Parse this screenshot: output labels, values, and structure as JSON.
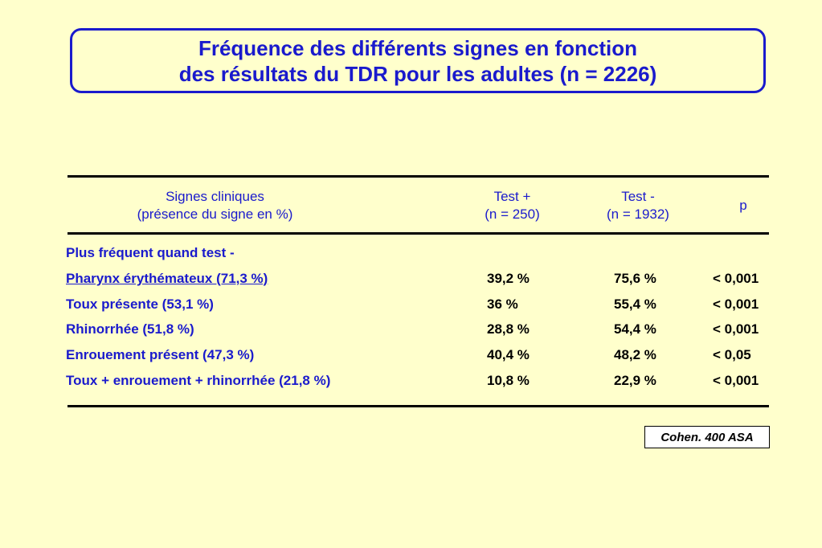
{
  "title": {
    "line1": "Fréquence des différents signes en fonction",
    "line2": "des résultats du TDR pour les adultes (n = 2226)"
  },
  "table": {
    "headers": {
      "signes_line1": "Signes cliniques",
      "signes_line2": "(présence du signe en %)",
      "test_pos_line1": "Test +",
      "test_pos_line2": "(n = 250)",
      "test_neg_line1": "Test -",
      "test_neg_line2": "(n = 1932)",
      "p": "p"
    },
    "section_label": "Plus fréquent quand test -",
    "rows": [
      {
        "label": "Pharynx érythémateux (71,3 %)",
        "test_pos": "39,2 %",
        "test_neg": "75,6 %",
        "p": "< 0,001"
      },
      {
        "label": "Toux présente (53,1 %)",
        "test_pos": "36 %",
        "test_neg": "55,4 %",
        "p": "< 0,001"
      },
      {
        "label": "Rhinorrhée (51,8 %)",
        "test_pos": "28,8 %",
        "test_neg": "54,4 %",
        "p": "< 0,001"
      },
      {
        "label": "Enrouement présent (47,3 %)",
        "test_pos": "40,4 %",
        "test_neg": "48,2 %",
        "p": "< 0,05"
      },
      {
        "label": "Toux + enrouement + rhinorrhée (21,8 %)",
        "test_pos": "10,8 %",
        "test_neg": "22,9 %",
        "p": "< 0,001"
      }
    ]
  },
  "source": "Cohen. 400 ASA",
  "colors": {
    "background": "#ffffcc",
    "accent": "#1a1acc",
    "text": "#000000"
  }
}
